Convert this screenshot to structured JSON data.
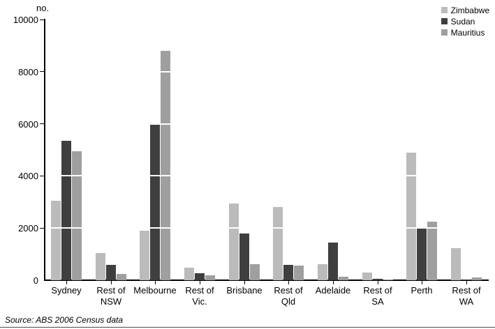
{
  "figure": {
    "unit_label": "no.",
    "source": "Source: ABS 2006 Census data"
  },
  "chart_data": {
    "type": "bar",
    "title": "",
    "xlabel": "",
    "ylabel": "no.",
    "ylim": [
      0,
      10000
    ],
    "yticks": [
      0,
      2000,
      4000,
      6000,
      8000,
      10000
    ],
    "grid": "white overlay segments on bars at each ytick",
    "legend_position": "top-right",
    "categories": [
      "Sydney",
      "Rest of NSW",
      "Melbourne",
      "Rest of Vic.",
      "Brisbane",
      "Rest of Qld",
      "Adelaide",
      "Rest of SA",
      "Perth",
      "Rest of WA"
    ],
    "category_label_lines": [
      [
        "Sydney"
      ],
      [
        "Rest of",
        "NSW"
      ],
      [
        "Melbourne"
      ],
      [
        "Rest of",
        "Vic."
      ],
      [
        "Brisbane"
      ],
      [
        "Rest of",
        "Qld"
      ],
      [
        "Adelaide"
      ],
      [
        "Rest of",
        "SA"
      ],
      [
        "Perth"
      ],
      [
        "Rest of",
        "WA"
      ]
    ],
    "series": [
      {
        "name": "Zimbabwe",
        "color": "#bbbbbb",
        "values": [
          3050,
          1050,
          1900,
          475,
          2950,
          2800,
          620,
          300,
          4900,
          1230
        ]
      },
      {
        "name": "Sudan",
        "color": "#3f3f3f",
        "values": [
          5350,
          600,
          5950,
          260,
          1800,
          600,
          1450,
          50,
          2000,
          40
        ]
      },
      {
        "name": "Mauritius",
        "color": "#9f9f9f",
        "values": [
          4950,
          250,
          8800,
          190,
          620,
          560,
          130,
          20,
          2250,
          110
        ]
      }
    ],
    "source": "Source: ABS 2006 Census data"
  },
  "layout_colors": {
    "axis": "#000000",
    "background": "#ffffff",
    "gridline_overlay": "#ffffff"
  }
}
